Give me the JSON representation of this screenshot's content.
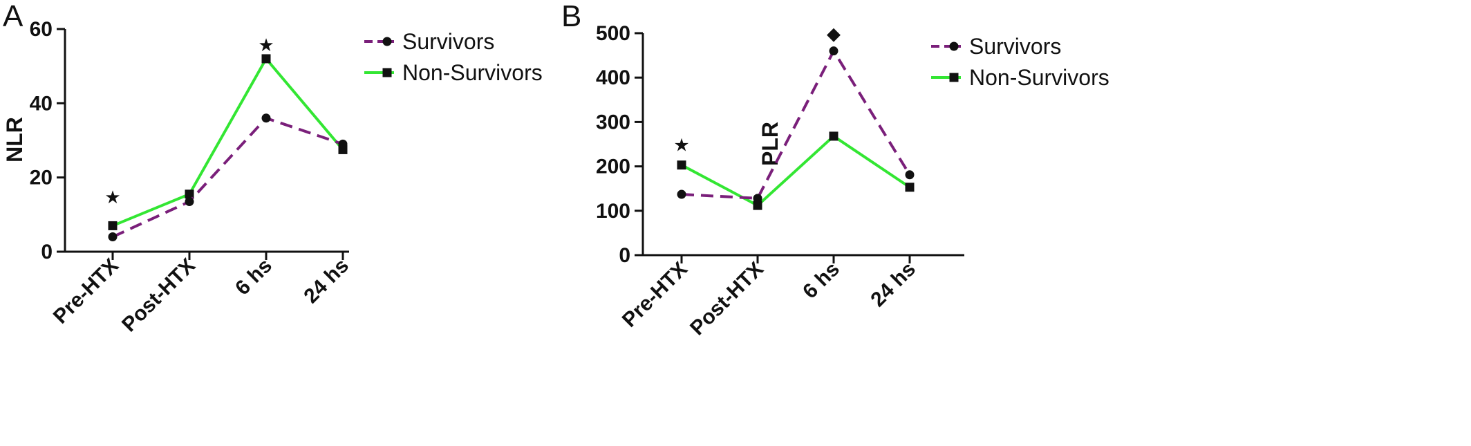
{
  "colors": {
    "survivors": "#7a1f7a",
    "non_survivors": "#33e633",
    "axis": "#111111"
  },
  "chart_data": [
    {
      "type": "line",
      "panel_label": "A",
      "categories": [
        "Pre-HTX",
        "Post-HTX",
        "6 hs",
        "24 hs"
      ],
      "ylabel": "NLR",
      "xlabel": "",
      "ylim": [
        0,
        60
      ],
      "yticks": [
        "0",
        "20",
        "40",
        "60"
      ],
      "legend_position": "top-right",
      "series": [
        {
          "name": "Survivors",
          "values": [
            4,
            13.5,
            36,
            29
          ],
          "style": "dashed",
          "marker": "circle",
          "color_key": "survivors"
        },
        {
          "name": "Non-Survivors",
          "values": [
            7,
            15.5,
            52,
            27.5
          ],
          "style": "solid",
          "marker": "square",
          "color_key": "non_survivors"
        }
      ],
      "annotations": [
        {
          "category_index": 0,
          "value": 14.5,
          "symbol": "★"
        },
        {
          "category_index": 2,
          "value": 55.5,
          "symbol": "★"
        }
      ]
    },
    {
      "type": "line",
      "panel_label": "B",
      "categories": [
        "Pre-HTX",
        "Post-HTX",
        "6 hs",
        "24 hs"
      ],
      "ylabel": "PLR",
      "xlabel": "",
      "ylim": [
        0,
        500
      ],
      "yticks": [
        "0",
        "100",
        "200",
        "300",
        "400",
        "500"
      ],
      "legend_position": "top-right",
      "series": [
        {
          "name": "Survivors",
          "values": [
            137,
            128,
            460,
            181
          ],
          "style": "dashed",
          "marker": "circle",
          "color_key": "survivors"
        },
        {
          "name": "Non-Survivors",
          "values": [
            203,
            112,
            268,
            153
          ],
          "style": "solid",
          "marker": "square",
          "color_key": "non_survivors"
        }
      ],
      "annotations": [
        {
          "category_index": 0,
          "value": 247,
          "symbol": "★"
        },
        {
          "category_index": 2,
          "value": 498,
          "symbol": "◆"
        }
      ]
    }
  ]
}
